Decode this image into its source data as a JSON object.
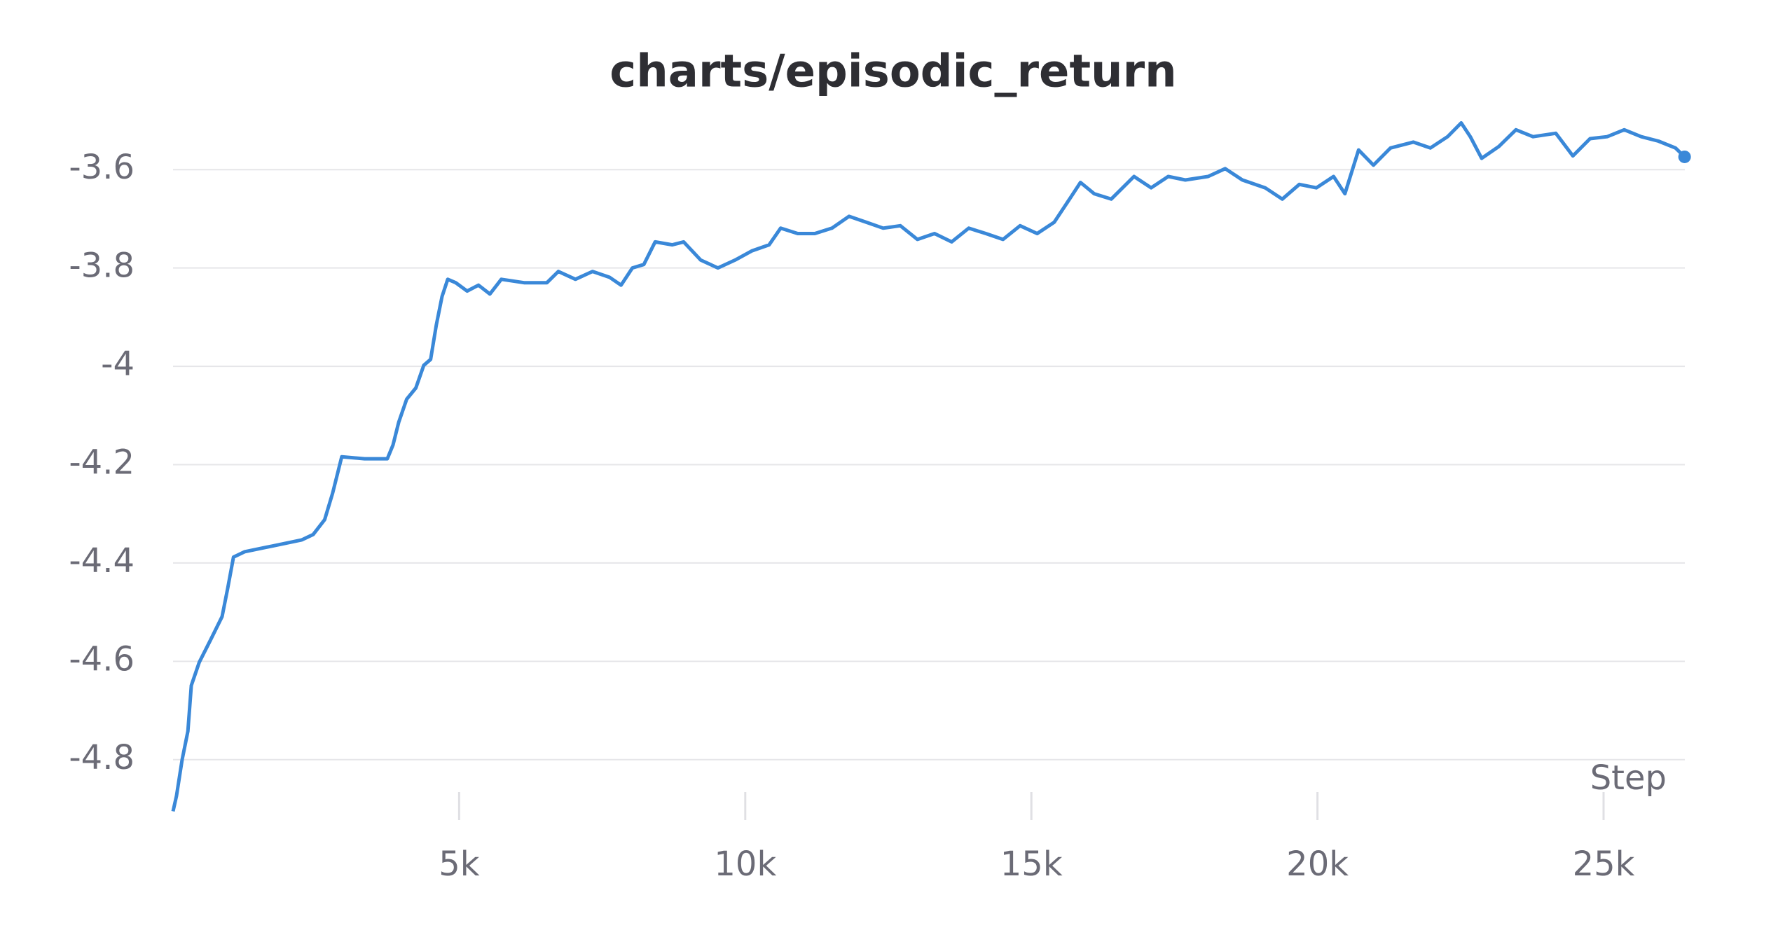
{
  "chart_data": {
    "type": "line",
    "title": "charts/episodic_return",
    "x_label": "Step",
    "x": [
      0,
      60,
      159,
      259,
      319,
      458,
      657,
      857,
      956,
      1056,
      1255,
      1753,
      2251,
      2450,
      2649,
      2789,
      2948,
      3347,
      3745,
      3844,
      3944,
      4083,
      4243,
      4382,
      4502,
      4601,
      4701,
      4801,
      4940,
      5139,
      5338,
      5538,
      5737,
      6135,
      6534,
      6733,
      7032,
      7331,
      7630,
      7829,
      8028,
      8227,
      8426,
      8725,
      8924,
      9223,
      9522,
      9821,
      10120,
      10418,
      10618,
      10917,
      11216,
      11515,
      11813,
      12112,
      12411,
      12710,
      13009,
      13308,
      13607,
      13906,
      14205,
      14504,
      14803,
      15101,
      15400,
      15599,
      15858,
      16097,
      16396,
      16794,
      17093,
      17392,
      17691,
      18089,
      18388,
      18687,
      19086,
      19385,
      19683,
      19982,
      20281,
      20480,
      20719,
      20978,
      21277,
      21675,
      21974,
      22273,
      22512,
      22671,
      22870,
      23169,
      23468,
      23767,
      24165,
      24464,
      24763,
      25062,
      25361,
      25659,
      25958,
      26257,
      26416
    ],
    "series": [
      {
        "name": "episodic_return",
        "color": "#3a88d8",
        "values": [
          -4.905,
          -4.874,
          -4.8,
          -4.742,
          -4.649,
          -4.602,
          -4.556,
          -4.509,
          -4.451,
          -4.388,
          -4.377,
          -4.365,
          -4.353,
          -4.342,
          -4.312,
          -4.258,
          -4.184,
          -4.188,
          -4.188,
          -4.16,
          -4.114,
          -4.067,
          -4.044,
          -3.998,
          -3.986,
          -3.916,
          -3.858,
          -3.823,
          -3.83,
          -3.847,
          -3.835,
          -3.853,
          -3.823,
          -3.83,
          -3.83,
          -3.807,
          -3.823,
          -3.807,
          -3.819,
          -3.835,
          -3.8,
          -3.793,
          -3.747,
          -3.753,
          -3.747,
          -3.784,
          -3.8,
          -3.784,
          -3.765,
          -3.753,
          -3.719,
          -3.73,
          -3.73,
          -3.719,
          -3.695,
          -3.707,
          -3.719,
          -3.714,
          -3.742,
          -3.73,
          -3.747,
          -3.719,
          -3.73,
          -3.742,
          -3.714,
          -3.73,
          -3.707,
          -3.672,
          -3.626,
          -3.649,
          -3.66,
          -3.614,
          -3.637,
          -3.614,
          -3.621,
          -3.614,
          -3.598,
          -3.621,
          -3.637,
          -3.66,
          -3.63,
          -3.637,
          -3.614,
          -3.649,
          -3.56,
          -3.591,
          -3.556,
          -3.544,
          -3.556,
          -3.533,
          -3.505,
          -3.533,
          -3.577,
          -3.553,
          -3.519,
          -3.533,
          -3.526,
          -3.572,
          -3.537,
          -3.533,
          -3.519,
          -3.533,
          -3.542,
          -3.556,
          -3.574
        ]
      }
    ],
    "xlim": [
      0,
      26420
    ],
    "ylim": [
      -4.9,
      -3.5
    ],
    "xticks": [
      {
        "value": 5000,
        "label": "5k"
      },
      {
        "value": 10000,
        "label": "10k"
      },
      {
        "value": 15000,
        "label": "15k"
      },
      {
        "value": 20000,
        "label": "20k"
      },
      {
        "value": 25000,
        "label": "25k"
      }
    ],
    "yticks": [
      -3.6,
      -3.8,
      -4,
      -4.2,
      -4.4,
      -4.6,
      -4.8
    ],
    "grid": true
  }
}
